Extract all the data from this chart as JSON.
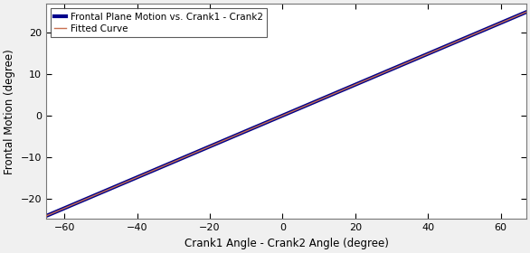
{
  "x_min": -65,
  "x_max": 67,
  "y_min": -25,
  "y_max": 27,
  "x_ticks": [
    -60,
    -40,
    -20,
    0,
    20,
    40,
    60
  ],
  "y_ticks": [
    -20,
    -10,
    0,
    10,
    20
  ],
  "xlabel": "Crank1 Angle - Crank2 Angle (degree)",
  "ylabel": "Frontal Motion (degree)",
  "data_label": "Frontal Plane Motion vs. Crank1 - Crank2",
  "fit_label": "Fitted Curve",
  "data_color": "#00008B",
  "fit_color": "#c87050",
  "slope_num": 48.5,
  "slope_den": 130,
  "intercept": 0.0,
  "background_color": "#f0f0f0",
  "plot_bg_color": "#ffffff",
  "legend_fontsize": 7.5,
  "axis_fontsize": 8.5,
  "tick_fontsize": 8,
  "marker_size": 2,
  "data_linewidth": 3,
  "fit_linewidth": 1.0
}
